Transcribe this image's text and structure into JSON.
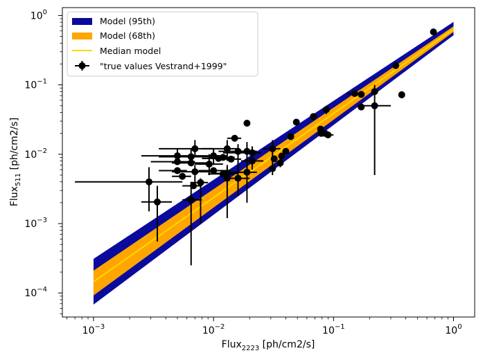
{
  "chart_data": {
    "type": "scatter",
    "scale": {
      "x": "log",
      "y": "log"
    },
    "xlim": [
      0.00055,
      1.5
    ],
    "ylim": [
      4.5e-05,
      1.3
    ],
    "grid": false,
    "legend_position": "top-left",
    "xlabel": {
      "main": "Flux",
      "sub": "2223",
      "unit": " [ph/cm2/s]"
    },
    "ylabel": {
      "main": "Flux",
      "sub": "511",
      "unit": " [ph/cm2/s]"
    },
    "xticks": [
      {
        "value": 0.001,
        "base": "10",
        "exp": "−3"
      },
      {
        "value": 0.01,
        "base": "10",
        "exp": "−2"
      },
      {
        "value": 0.1,
        "base": "10",
        "exp": "−1"
      },
      {
        "value": 1,
        "base": "10",
        "exp": "0"
      }
    ],
    "yticks": [
      {
        "value": 0.0001,
        "base": "10",
        "exp": "−4"
      },
      {
        "value": 0.001,
        "base": "10",
        "exp": "−3"
      },
      {
        "value": 0.01,
        "base": "10",
        "exp": "−2"
      },
      {
        "value": 0.1,
        "base": "10",
        "exp": "−1"
      },
      {
        "value": 1,
        "base": "10",
        "exp": "0"
      }
    ],
    "bands": [
      {
        "name": "Model (95th)",
        "color": "#0a0a9c",
        "x": [
          0.001,
          1
        ],
        "lower": [
          6.8e-05,
          0.52
        ],
        "upper": [
          0.00031,
          0.81
        ]
      },
      {
        "name": "Model (68th)",
        "color": "#ffa500",
        "x": [
          0.001,
          1
        ],
        "lower": [
          9.2e-05,
          0.58
        ],
        "upper": [
          0.00021,
          0.7
        ]
      }
    ],
    "median": {
      "name": "Median model",
      "color": "#ffd700",
      "x": [
        0.001,
        1
      ],
      "y": [
        0.000145,
        0.635
      ]
    },
    "points_series_name": "\"true values Vestrand+1999\"",
    "points_color": "#000000",
    "points": [
      {
        "x": 0.68,
        "y": 0.58
      },
      {
        "x": 0.33,
        "y": 0.19
      },
      {
        "x": 0.37,
        "y": 0.072,
        "yerr": [
          0.064,
          0.081
        ]
      },
      {
        "x": 0.22,
        "y": 0.08,
        "yerr": [
          0.06,
          0.1
        ]
      },
      {
        "x": 0.15,
        "y": 0.075,
        "xerr": [
          0.13,
          0.17
        ]
      },
      {
        "x": 0.17,
        "y": 0.073
      },
      {
        "x": 0.17,
        "y": 0.048
      },
      {
        "x": 0.22,
        "y": 0.05,
        "xerr": [
          0.16,
          0.3
        ],
        "yerr": [
          0.005,
          0.06
        ]
      },
      {
        "x": 0.087,
        "y": 0.044,
        "yerr": [
          0.038,
          0.05
        ]
      },
      {
        "x": 0.068,
        "y": 0.035,
        "yerr": [
          0.031,
          0.039
        ]
      },
      {
        "x": 0.078,
        "y": 0.023
      },
      {
        "x": 0.079,
        "y": 0.02
      },
      {
        "x": 0.09,
        "y": 0.019,
        "xerr": [
          0.078,
          0.1
        ]
      },
      {
        "x": 0.085,
        "y": 0.02
      },
      {
        "x": 0.049,
        "y": 0.029
      },
      {
        "x": 0.044,
        "y": 0.018
      },
      {
        "x": 0.04,
        "y": 0.011
      },
      {
        "x": 0.037,
        "y": 0.0094
      },
      {
        "x": 0.036,
        "y": 0.0075,
        "yerr": [
          0.0065,
          0.0085
        ]
      },
      {
        "x": 0.031,
        "y": 0.012,
        "xerr": [
          0.026,
          0.036
        ],
        "yerr": [
          0.007,
          0.016
        ]
      },
      {
        "x": 0.032,
        "y": 0.0086
      },
      {
        "x": 0.031,
        "y": 0.0062,
        "yerr": [
          0.005,
          0.007
        ]
      },
      {
        "x": 0.019,
        "y": 0.028
      },
      {
        "x": 0.015,
        "y": 0.017,
        "xerr": [
          0.013,
          0.017
        ]
      },
      {
        "x": 0.021,
        "y": 0.0105,
        "xerr": [
          0.012,
          0.025
        ],
        "yerr": [
          0.007,
          0.013
        ]
      },
      {
        "x": 0.019,
        "y": 0.011,
        "xerr": [
          0.015,
          0.023
        ],
        "yerr": [
          0.006,
          0.015
        ]
      },
      {
        "x": 0.016,
        "y": 0.011,
        "xerr": [
          0.011,
          0.02
        ],
        "yerr": [
          0.004,
          0.014
        ]
      },
      {
        "x": 0.021,
        "y": 0.008,
        "xerr": [
          0.017,
          0.026
        ],
        "yerr": [
          0.006,
          0.01
        ]
      },
      {
        "x": 0.019,
        "y": 0.0055,
        "xerr": [
          0.013,
          0.023
        ],
        "yerr": [
          0.002,
          0.008
        ]
      },
      {
        "x": 0.016,
        "y": 0.0045,
        "xerr": [
          0.013,
          0.02
        ],
        "yerr": [
          0.0025,
          0.007
        ]
      },
      {
        "x": 0.013,
        "y": 0.012,
        "xerr": [
          0.008,
          0.016
        ],
        "yerr": [
          0.008,
          0.016
        ]
      },
      {
        "x": 0.012,
        "y": 0.009,
        "xerr": [
          0.009,
          0.015
        ]
      },
      {
        "x": 0.014,
        "y": 0.0085,
        "xerr": [
          0.011,
          0.017
        ]
      },
      {
        "x": 0.011,
        "y": 0.0087,
        "xerr": [
          0.008,
          0.014
        ]
      },
      {
        "x": 0.01,
        "y": 0.0095,
        "xerr": [
          0.007,
          0.013
        ],
        "yerr": [
          0.007,
          0.012
        ]
      },
      {
        "x": 0.0092,
        "y": 0.0072,
        "xerr": [
          0.007,
          0.012
        ],
        "yerr": [
          0.005,
          0.01
        ]
      },
      {
        "x": 0.01,
        "y": 0.0058,
        "xerr": [
          0.0075,
          0.014
        ]
      },
      {
        "x": 0.013,
        "y": 0.0053,
        "xerr": [
          0.01,
          0.016
        ],
        "yerr": [
          0.004,
          0.007
        ]
      },
      {
        "x": 0.013,
        "y": 0.0045,
        "yerr": [
          0.0012,
          0.0065
        ]
      },
      {
        "x": 0.012,
        "y": 0.0052,
        "xerr": [
          0.009,
          0.015
        ]
      },
      {
        "x": 0.007,
        "y": 0.012,
        "xerr": [
          0.0035,
          0.01
        ],
        "yerr": [
          0.009,
          0.016
        ]
      },
      {
        "x": 0.0065,
        "y": 0.0092,
        "xerr": [
          0.0035,
          0.009
        ],
        "yerr": [
          0.007,
          0.012
        ]
      },
      {
        "x": 0.005,
        "y": 0.0095,
        "xerr": [
          0.0025,
          0.007
        ],
        "yerr": [
          0.0075,
          0.012
        ]
      },
      {
        "x": 0.005,
        "y": 0.0078,
        "xerr": [
          0.003,
          0.007
        ]
      },
      {
        "x": 0.0065,
        "y": 0.0075,
        "xerr": [
          0.0045,
          0.009
        ]
      },
      {
        "x": 0.007,
        "y": 0.0056,
        "xerr": [
          0.0045,
          0.0095
        ],
        "yerr": [
          0.004,
          0.007
        ]
      },
      {
        "x": 0.005,
        "y": 0.0058,
        "xerr": [
          0.0035,
          0.006
        ]
      },
      {
        "x": 0.0055,
        "y": 0.0048,
        "xerr": [
          0.0045,
          0.0065
        ]
      },
      {
        "x": 0.0068,
        "y": 0.0035,
        "xerr": [
          0.0055,
          0.008
        ]
      },
      {
        "x": 0.0078,
        "y": 0.0039,
        "xerr": [
          0.0065,
          0.009
        ],
        "yerr": [
          0.001,
          0.0045
        ]
      },
      {
        "x": 0.0065,
        "y": 0.0022,
        "xerr": [
          0.0055,
          0.008
        ],
        "yerr": [
          0.00025,
          0.004
        ]
      },
      {
        "x": 0.0029,
        "y": 0.004,
        "xerr": [
          0.0007,
          0.0055
        ],
        "yerr": [
          0.0015,
          0.0065
        ]
      },
      {
        "x": 0.0034,
        "y": 0.00205,
        "xerr": [
          0.0025,
          0.0045
        ],
        "yerr": [
          0.00055,
          0.0035
        ]
      }
    ]
  }
}
